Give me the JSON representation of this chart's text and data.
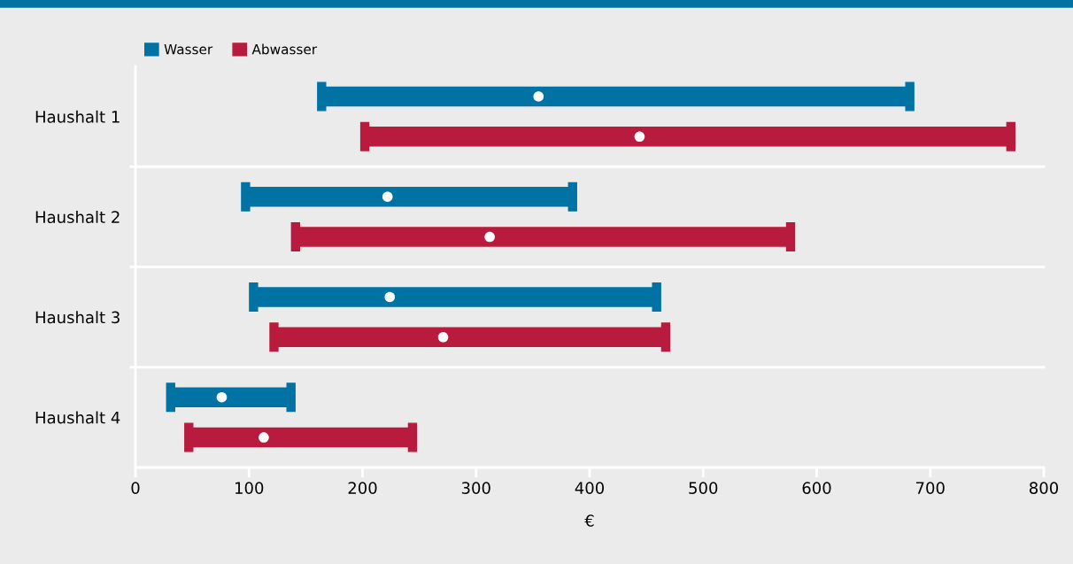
{
  "chart_data": {
    "type": "bar",
    "orientation": "horizontal",
    "xlabel": "€",
    "categories": [
      "Haushalt 1",
      "Haushalt 2",
      "Haushalt 3",
      "Haushalt 4"
    ],
    "series": [
      {
        "name": "Wasser",
        "color": "#0072a3",
        "base": [
          164,
          97,
          104,
          31
        ],
        "values": [
          518,
          288,
          355,
          106
        ]
      },
      {
        "name": "Abwasser",
        "color": "#b81b3e",
        "base": [
          202,
          141,
          122,
          47
        ],
        "values": [
          569,
          436,
          345,
          197
        ]
      },
      {
        "type": "scatter",
        "color": "#ffffff",
        "values": [
          355,
          222,
          224,
          76
        ]
      },
      {
        "type": "scatter",
        "color": "#ffffff",
        "values": [
          444,
          312,
          271,
          113
        ]
      }
    ],
    "xlim": [
      0,
      800
    ],
    "xticks": [
      0,
      100,
      200,
      300,
      400,
      500,
      600,
      700,
      800
    ],
    "grid": "y",
    "legend": "top left",
    "marker": "circle"
  }
}
